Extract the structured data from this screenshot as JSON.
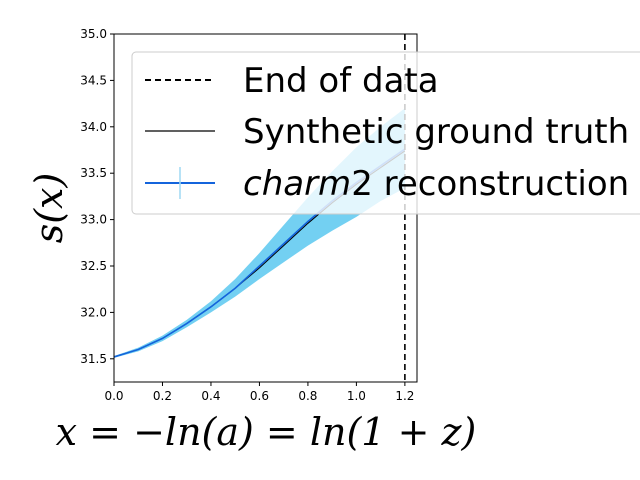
{
  "chart_data": {
    "type": "line",
    "title": "",
    "xlabel": "x = −ln(a) = ln(1 + z)",
    "ylabel": "s(x)",
    "xlim": [
      0.0,
      1.25
    ],
    "ylim": [
      31.25,
      35.0
    ],
    "x_ticks": [
      "0.0",
      "0.2",
      "0.4",
      "0.6",
      "0.8",
      "1.0",
      "1.2"
    ],
    "x_tick_values": [
      0.0,
      0.2,
      0.4,
      0.6,
      0.8,
      1.0,
      1.2
    ],
    "y_ticks": [
      "31.5",
      "32.0",
      "32.5",
      "33.0",
      "33.5",
      "34.0",
      "34.5",
      "35.0"
    ],
    "y_tick_values": [
      31.5,
      32.0,
      32.5,
      33.0,
      33.5,
      34.0,
      34.5,
      35.0
    ],
    "grid": false,
    "legend_position": "top-right",
    "end_of_data_x": 1.2,
    "series": [
      {
        "name": "Synthetic ground truth",
        "style": "solid",
        "color": "#000000",
        "x": [
          0.0,
          0.1,
          0.2,
          0.3,
          0.4,
          0.5,
          0.6,
          0.7,
          0.8,
          0.9,
          1.0,
          1.1,
          1.2
        ],
        "y": [
          31.52,
          31.6,
          31.72,
          31.88,
          32.06,
          32.26,
          32.48,
          32.72,
          32.96,
          33.18,
          33.38,
          33.56,
          33.74
        ]
      },
      {
        "name": "charm2 reconstruction",
        "style": "solid",
        "color": "#1464dc",
        "band_color": "#5bc8f0",
        "x": [
          0.0,
          0.1,
          0.2,
          0.3,
          0.4,
          0.5,
          0.6,
          0.7,
          0.8,
          0.9,
          1.0,
          1.1,
          1.2
        ],
        "y": [
          31.52,
          31.6,
          31.72,
          31.88,
          32.06,
          32.26,
          32.5,
          32.74,
          32.98,
          33.2,
          33.4,
          33.58,
          33.76
        ],
        "lower": [
          31.51,
          31.58,
          31.69,
          31.84,
          32.0,
          32.17,
          32.36,
          32.54,
          32.72,
          32.88,
          33.03,
          33.2,
          33.34
        ],
        "upper": [
          31.53,
          31.62,
          31.75,
          31.92,
          32.12,
          32.36,
          32.64,
          32.94,
          33.24,
          33.52,
          33.78,
          34.0,
          34.2
        ]
      }
    ]
  },
  "legend": {
    "items": [
      {
        "name": "End of data",
        "style": "dashed",
        "color": "#000000"
      },
      {
        "name": "Synthetic ground truth",
        "style": "solid",
        "color": "#000000"
      },
      {
        "name": "charm2 reconstruction",
        "style": "solid",
        "color": "#1464dc",
        "italic_prefix": "charm",
        "suffix": "2 reconstruction"
      }
    ]
  }
}
